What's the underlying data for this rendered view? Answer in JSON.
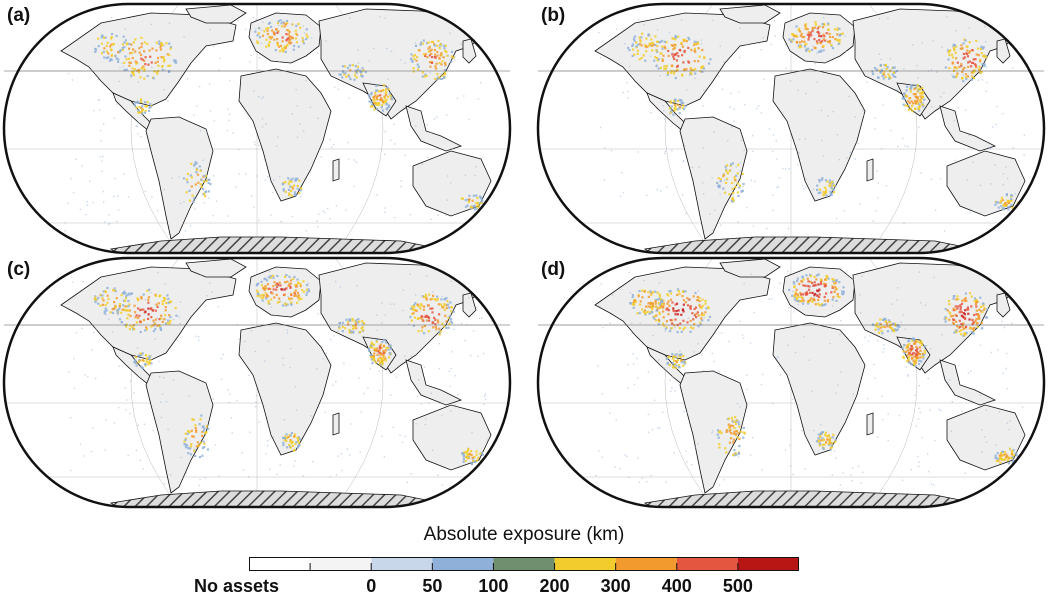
{
  "panels": [
    {
      "label": "(a)",
      "intensity": 0.55
    },
    {
      "label": "(b)",
      "intensity": 0.7
    },
    {
      "label": "(c)",
      "intensity": 0.75
    },
    {
      "label": "(d)",
      "intensity": 0.95
    }
  ],
  "legend": {
    "title": "Absolute exposure (km)",
    "no_assets_label": "No assets",
    "tick_labels": [
      "0",
      "50",
      "100",
      "200",
      "300",
      "400",
      "500"
    ],
    "bins": [
      {
        "color": "#ffffff"
      },
      {
        "color": "#f4f4f4"
      },
      {
        "color": "#c9d7ea"
      },
      {
        "color": "#8fb0d8"
      },
      {
        "color": "#6f8f6f"
      },
      {
        "color": "#f2cc2c"
      },
      {
        "color": "#f29a2e"
      },
      {
        "color": "#e55640"
      },
      {
        "color": "#b81515"
      }
    ]
  },
  "colors": {
    "land": "#eeeeee",
    "ocean": "#ffffff",
    "hatch": "#444444",
    "heat_low": "#8fb0d8",
    "heat_mid": "#f29a2e",
    "heat_high": "#c81e1e"
  }
}
